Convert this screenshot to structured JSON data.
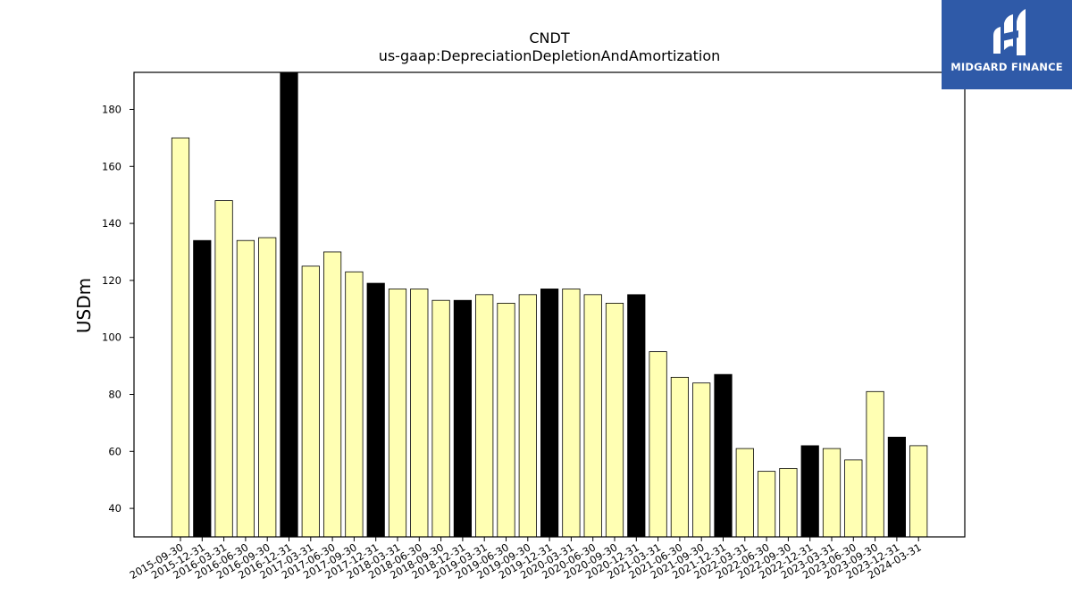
{
  "chart_data": {
    "type": "bar",
    "title": "CNDT",
    "subtitle": "us-gaap:DepreciationDepletionAndAmortization",
    "xlabel": "",
    "ylabel": "USDm",
    "ylim": [
      30,
      193
    ],
    "yticks": [
      40,
      60,
      80,
      100,
      120,
      140,
      160,
      180
    ],
    "grid": false,
    "colors": {
      "quarter": "#ffffb3",
      "year_end": "#000000",
      "edge": "#000000"
    },
    "categories": [
      "2015-09-30",
      "2015-12-31",
      "2016-03-31",
      "2016-06-30",
      "2016-09-30",
      "2016-12-31",
      "2017-03-31",
      "2017-06-30",
      "2017-09-30",
      "2017-12-31",
      "2018-03-31",
      "2018-06-30",
      "2018-09-30",
      "2018-12-31",
      "2019-03-31",
      "2019-06-30",
      "2019-09-30",
      "2019-12-31",
      "2020-03-31",
      "2020-06-30",
      "2020-09-30",
      "2020-12-31",
      "2021-03-31",
      "2021-06-30",
      "2021-09-30",
      "2021-12-31",
      "2022-03-31",
      "2022-06-30",
      "2022-09-30",
      "2022-12-31",
      "2023-03-31",
      "2023-06-30",
      "2023-09-30",
      "2023-12-31",
      "2024-03-31"
    ],
    "values": [
      170,
      134,
      148,
      134,
      135,
      193,
      125,
      130,
      123,
      119,
      117,
      117,
      113,
      113,
      115,
      112,
      115,
      117,
      117,
      115,
      112,
      115,
      95,
      86,
      84,
      87,
      61,
      53,
      54,
      62,
      61,
      57,
      81,
      65,
      62
    ],
    "year_end": [
      false,
      true,
      false,
      false,
      false,
      true,
      false,
      false,
      false,
      true,
      false,
      false,
      false,
      true,
      false,
      false,
      false,
      true,
      false,
      false,
      false,
      true,
      false,
      false,
      false,
      true,
      false,
      false,
      false,
      true,
      false,
      false,
      false,
      true,
      false
    ]
  },
  "logo": {
    "text": "MIDGARD FINANCE",
    "icon": "midgard-logo-icon"
  }
}
